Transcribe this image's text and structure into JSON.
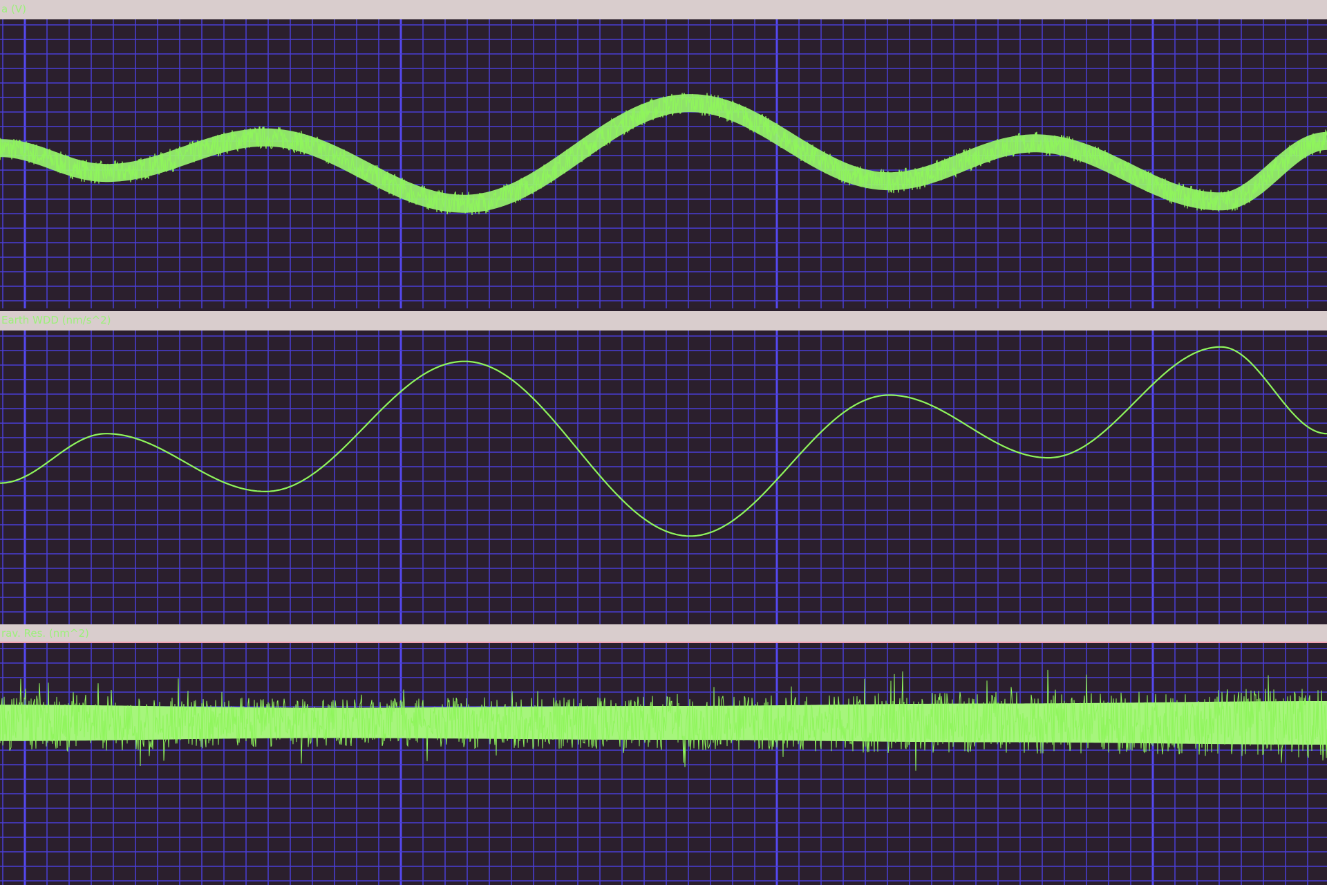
{
  "colors": {
    "background": "#2b1f2d",
    "grid_minor": "#4a3fd6",
    "grid_major": "#5548f0",
    "trace": "#8ff55c",
    "label_band": "#d9cdcd",
    "label_text": "#9cf07a"
  },
  "chart_data": [
    {
      "type": "line",
      "title": "a (V)",
      "grid": true,
      "note_style": "thick noisy trace",
      "t": [
        0,
        8,
        20,
        35,
        52,
        67,
        78,
        92,
        100
      ],
      "values": [
        0.06,
        -0.15,
        0.15,
        -0.41,
        0.44,
        -0.22,
        0.1,
        -0.39,
        0.12
      ],
      "noise": 0.1
    },
    {
      "type": "line",
      "title": "Earth WDD (nm/s^2)",
      "grid": true,
      "t": [
        0,
        8,
        20,
        35,
        52,
        67,
        79,
        92,
        100
      ],
      "values": [
        -0.12,
        0.29,
        -0.19,
        0.89,
        -0.56,
        0.61,
        0.09,
        1.01,
        0.29
      ],
      "noise": 0
    },
    {
      "type": "line",
      "title": "rav. Res. (nm^2)",
      "grid": true,
      "t": [
        0,
        25,
        50,
        75,
        100
      ],
      "values": [
        0,
        0,
        0,
        0,
        0
      ],
      "noise_envelope": [
        0.3,
        0.25,
        0.28,
        0.32,
        0.36
      ]
    }
  ]
}
